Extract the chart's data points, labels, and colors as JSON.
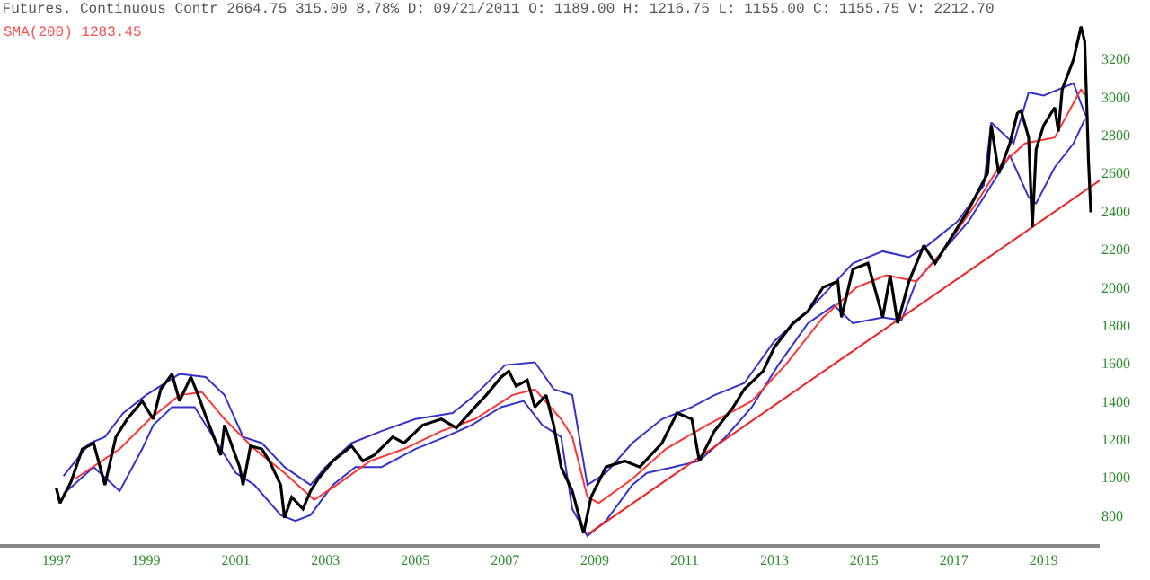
{
  "chart_data": {
    "type": "line",
    "title": "Futures. Continuous Contr 2664.75 315.00 8.78% D: 09/21/2011 O: 1189.00 H: 1216.75 L: 1155.00 C: 1155.75 V: 2212.70",
    "subtitle": "SMA(200) 1283.45",
    "xlim": [
      "1995-10",
      "2020-04"
    ],
    "xticks": [
      "1997",
      "1999",
      "2001",
      "2003",
      "2005",
      "2007",
      "2009",
      "2011",
      "2013",
      "2015",
      "2017",
      "2019"
    ],
    "ylim": [
      650,
      3510
    ],
    "yticks": [
      800,
      1000,
      1200,
      1400,
      1600,
      1800,
      2000,
      2200,
      2400,
      2600,
      2800,
      3000,
      3200
    ],
    "legend": false,
    "series": [
      {
        "color": "#3333cc",
        "x": [
          "1997-03",
          "1997-10",
          "1998-02",
          "1998-07",
          "1999-01",
          "1999-10",
          "2000-05",
          "2000-10",
          "2001-03",
          "2001-08",
          "2002-02",
          "2002-09",
          "2003-01",
          "2003-08",
          "2004-04",
          "2005-01",
          "2005-11",
          "2006-05",
          "2007-01",
          "2007-09",
          "2008-02",
          "2008-07",
          "2008-11",
          "2009-04",
          "2009-11",
          "2010-07",
          "2011-03",
          "2011-09",
          "2012-05",
          "2013-01",
          "2013-10",
          "2014-10",
          "2015-06",
          "2016-01",
          "2016-06",
          "2017-02",
          "2017-09",
          "2017-11",
          "2018-05",
          "2018-09",
          "2019-01",
          "2019-09",
          "2019-12",
          "2020-01"
        ],
        "values": [
          1008,
          1181,
          1213,
          1339,
          1433,
          1544,
          1528,
          1433,
          1213,
          1181,
          1055,
          961,
          1055,
          1181,
          1244,
          1307,
          1339,
          1433,
          1591,
          1606,
          1464,
          1433,
          961,
          1024,
          1181,
          1307,
          1370,
          1433,
          1496,
          1717,
          1874,
          2126,
          2189,
          2158,
          2220,
          2347,
          2536,
          2866,
          2756,
          3024,
          3008,
          3072,
          2914,
          2882
        ]
      },
      {
        "color": "#3333cc",
        "x": [
          "1997-03",
          "1997-11",
          "1998-06",
          "1998-12",
          "1999-03",
          "1999-08",
          "2000-02",
          "2000-07",
          "2001-01",
          "2001-06",
          "2002-01",
          "2002-05",
          "2002-09",
          "2003-03",
          "2003-09",
          "2004-04",
          "2005-01",
          "2005-09",
          "2006-04",
          "2006-12",
          "2007-06",
          "2007-11",
          "2008-04",
          "2008-07",
          "2008-11",
          "2009-04",
          "2009-11",
          "2010-03",
          "2010-10",
          "2011-05",
          "2011-12",
          "2012-07",
          "2013-02",
          "2013-10",
          "2014-05",
          "2014-10",
          "2015-06",
          "2015-11",
          "2016-03",
          "2016-10",
          "2017-05",
          "2017-12",
          "2018-04",
          "2018-09",
          "2018-11",
          "2019-04",
          "2019-09",
          "2019-12"
        ],
        "values": [
          913,
          1055,
          929,
          1150,
          1275,
          1370,
          1370,
          1213,
          1024,
          961,
          803,
          772,
          803,
          961,
          1055,
          1055,
          1150,
          1213,
          1275,
          1370,
          1402,
          1275,
          1213,
          835,
          693,
          772,
          961,
          1024,
          1055,
          1087,
          1213,
          1370,
          1591,
          1811,
          1905,
          1811,
          1842,
          1827,
          2031,
          2189,
          2347,
          2567,
          2693,
          2473,
          2441,
          2630,
          2756,
          2882
        ]
      },
      {
        "color": "#ff3333",
        "x": [
          "1997-06",
          "1998-06",
          "1999-02",
          "1999-10",
          "2000-04",
          "2000-10",
          "2001-06",
          "2002-02",
          "2002-10",
          "2003-04",
          "2004-01",
          "2004-10",
          "2005-08",
          "2006-05",
          "2007-03",
          "2007-09",
          "2008-04",
          "2008-07",
          "2008-11",
          "2009-02",
          "2009-11",
          "2010-08",
          "2011-07",
          "2012-07",
          "2013-04",
          "2014-02",
          "2014-11",
          "2015-07",
          "2016-03",
          "2016-10",
          "2017-07",
          "2018-01",
          "2018-08",
          "2019-04",
          "2019-11",
          "2019-12"
        ],
        "values": [
          992,
          1150,
          1307,
          1433,
          1449,
          1307,
          1150,
          1024,
          882,
          961,
          1087,
          1150,
          1244,
          1307,
          1433,
          1464,
          1307,
          1213,
          897,
          866,
          992,
          1150,
          1275,
          1402,
          1591,
          1842,
          2000,
          2063,
          2031,
          2189,
          2441,
          2630,
          2756,
          2787,
          3040,
          3008
        ]
      },
      {
        "color": "#ee2222",
        "x": [
          "2008-11",
          "2020-04"
        ],
        "values": [
          700,
          2561
        ]
      },
      {
        "color": "#000000",
        "x": [
          "1997-01",
          "1997-02",
          "1997-05",
          "1997-08",
          "1997-11",
          "1998-02",
          "1998-05",
          "1998-08",
          "1998-12",
          "1999-03",
          "1999-05",
          "1999-08",
          "1999-10",
          "2000-01",
          "2000-03",
          "2000-05",
          "2000-09",
          "2000-10",
          "2001-02",
          "2001-03",
          "2001-05",
          "2001-08",
          "2001-10",
          "2002-01",
          "2002-02",
          "2002-04",
          "2002-07",
          "2002-09",
          "2002-11",
          "2003-03",
          "2003-08",
          "2003-11",
          "2004-02",
          "2004-07",
          "2004-10",
          "2005-03",
          "2005-08",
          "2005-12",
          "2006-05",
          "2006-08",
          "2006-12",
          "2007-02",
          "2007-04",
          "2007-07",
          "2007-09",
          "2007-12",
          "2008-02",
          "2008-04",
          "2008-07",
          "2008-10",
          "2008-12",
          "2009-04",
          "2009-09",
          "2010-01",
          "2010-07",
          "2010-11",
          "2011-03",
          "2011-05",
          "2011-09",
          "2012-02",
          "2012-05",
          "2012-10",
          "2013-01",
          "2013-06",
          "2013-10",
          "2014-02",
          "2014-06",
          "2014-07",
          "2014-10",
          "2015-02",
          "2015-06",
          "2015-08",
          "2015-10",
          "2016-01",
          "2016-05",
          "2016-08",
          "2017-01",
          "2017-05",
          "2017-10",
          "2017-11",
          "2018-01",
          "2018-04",
          "2018-06",
          "2018-07",
          "2018-09",
          "2018-10",
          "2018-11",
          "2019-01",
          "2019-04",
          "2019-05",
          "2019-06",
          "2019-09",
          "2019-11",
          "2019-12",
          "2020-01",
          "2020-01-20"
        ],
        "values": [
          945,
          866,
          977,
          1150,
          1181,
          961,
          1213,
          1307,
          1402,
          1307,
          1464,
          1544,
          1402,
          1528,
          1433,
          1323,
          1118,
          1275,
          1055,
          961,
          1166,
          1150,
          1087,
          961,
          788,
          897,
          835,
          929,
          992,
          1087,
          1166,
          1087,
          1118,
          1213,
          1181,
          1275,
          1307,
          1260,
          1370,
          1433,
          1528,
          1559,
          1480,
          1512,
          1370,
          1433,
          1275,
          1055,
          929,
          708,
          897,
          1055,
          1087,
          1055,
          1181,
          1339,
          1307,
          1087,
          1244,
          1370,
          1464,
          1559,
          1685,
          1811,
          1874,
          2000,
          2031,
          1842,
          2095,
          2126,
          1842,
          2063,
          1811,
          2031,
          2220,
          2126,
          2284,
          2409,
          2598,
          2851,
          2598,
          2756,
          2914,
          2929,
          2787,
          2315,
          2725,
          2851,
          2945,
          2819,
          3040,
          3197,
          3370,
          3292,
          2662,
          2394
        ]
      }
    ]
  }
}
